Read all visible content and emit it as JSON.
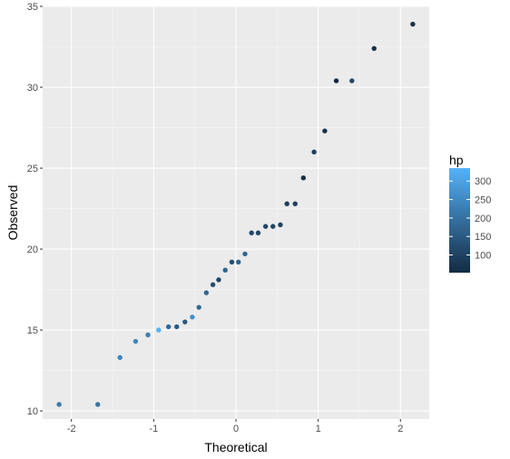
{
  "chart_data": {
    "type": "scatter",
    "title": "",
    "xlabel": "Theoretical",
    "ylabel": "Observed",
    "xlim": [
      -2.35,
      2.35
    ],
    "ylim": [
      9.5,
      35.0
    ],
    "x_ticks": [
      -2,
      -1,
      0,
      1,
      2
    ],
    "x_tick_labels": [
      "-2",
      "-1",
      "0",
      "1",
      "2"
    ],
    "y_ticks": [
      10,
      15,
      20,
      25,
      30,
      35
    ],
    "y_tick_labels": [
      "10",
      "15",
      "20",
      "25",
      "30",
      "35"
    ],
    "grid": true,
    "background": "#ebebeb",
    "grid_major_color": "#ffffff",
    "legend": {
      "title": "hp",
      "placement": "right",
      "ticks": [
        100,
        150,
        200,
        250,
        300
      ],
      "tick_labels": [
        "100",
        "150",
        "200",
        "250",
        "300"
      ],
      "range": [
        52,
        335
      ],
      "low_color": "#132b43",
      "high_color": "#56b1f7"
    },
    "points": [
      {
        "x": -2.15,
        "y": 10.4,
        "hp": 215
      },
      {
        "x": -1.68,
        "y": 10.4,
        "hp": 205
      },
      {
        "x": -1.41,
        "y": 13.3,
        "hp": 245
      },
      {
        "x": -1.22,
        "y": 14.3,
        "hp": 245
      },
      {
        "x": -1.07,
        "y": 14.7,
        "hp": 230
      },
      {
        "x": -0.94,
        "y": 15.0,
        "hp": 335
      },
      {
        "x": -0.82,
        "y": 15.2,
        "hp": 180
      },
      {
        "x": -0.72,
        "y": 15.2,
        "hp": 150
      },
      {
        "x": -0.62,
        "y": 15.5,
        "hp": 150
      },
      {
        "x": -0.53,
        "y": 15.8,
        "hp": 264
      },
      {
        "x": -0.45,
        "y": 16.4,
        "hp": 180
      },
      {
        "x": -0.36,
        "y": 17.3,
        "hp": 180
      },
      {
        "x": -0.28,
        "y": 17.8,
        "hp": 123
      },
      {
        "x": -0.21,
        "y": 18.1,
        "hp": 105
      },
      {
        "x": -0.13,
        "y": 18.7,
        "hp": 175
      },
      {
        "x": -0.05,
        "y": 19.2,
        "hp": 123
      },
      {
        "x": 0.03,
        "y": 19.2,
        "hp": 175
      },
      {
        "x": 0.11,
        "y": 19.7,
        "hp": 175
      },
      {
        "x": 0.19,
        "y": 21.0,
        "hp": 110
      },
      {
        "x": 0.27,
        "y": 21.0,
        "hp": 110
      },
      {
        "x": 0.36,
        "y": 21.4,
        "hp": 110
      },
      {
        "x": 0.45,
        "y": 21.4,
        "hp": 109
      },
      {
        "x": 0.54,
        "y": 21.5,
        "hp": 97
      },
      {
        "x": 0.62,
        "y": 22.8,
        "hp": 93
      },
      {
        "x": 0.72,
        "y": 22.8,
        "hp": 95
      },
      {
        "x": 0.82,
        "y": 24.4,
        "hp": 62
      },
      {
        "x": 0.95,
        "y": 26.0,
        "hp": 91
      },
      {
        "x": 1.08,
        "y": 27.3,
        "hp": 66
      },
      {
        "x": 1.22,
        "y": 30.4,
        "hp": 52
      },
      {
        "x": 1.41,
        "y": 30.4,
        "hp": 113
      },
      {
        "x": 1.68,
        "y": 32.4,
        "hp": 66
      },
      {
        "x": 2.15,
        "y": 33.9,
        "hp": 65
      }
    ]
  }
}
